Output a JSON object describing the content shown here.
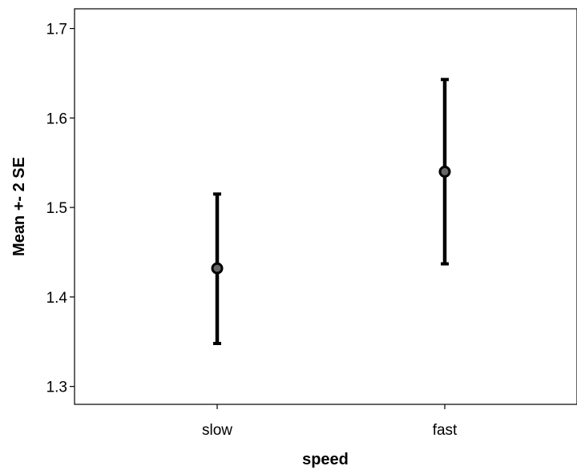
{
  "chart_data": {
    "type": "scatter",
    "subtype": "error-bar",
    "title": "",
    "xlabel": "speed",
    "ylabel": "Mean +- 2 SE",
    "categories": [
      "slow",
      "fast"
    ],
    "mean": [
      1.432,
      1.54
    ],
    "lower": [
      1.348,
      1.437
    ],
    "upper": [
      1.515,
      1.643
    ],
    "ylim": [
      1.28,
      1.722
    ],
    "yticks": [
      1.3,
      1.4,
      1.5,
      1.6,
      1.7
    ],
    "ytick_labels": [
      "1.3",
      "1.4",
      "1.5",
      "1.6",
      "1.7"
    ],
    "grid": false,
    "colors": {
      "bar": "#000000",
      "marker_fill": "#666666",
      "marker_edge": "#000000",
      "axis": "#000000"
    }
  }
}
